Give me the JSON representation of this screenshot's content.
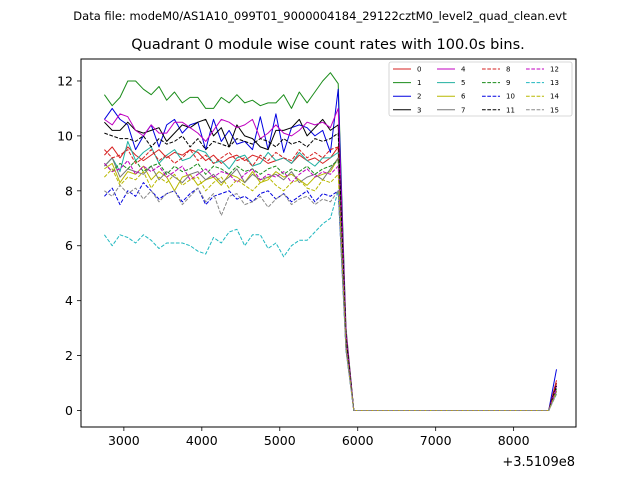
{
  "figure": {
    "suptitle": "Data file: modeM0/AS1A10_099T01_9000004184_29122cztM0_level2_quad_clean.evt",
    "title": "Quadrant 0 module wise count rates with 100.0s bins.",
    "x_offset_label": "+3.5109e8"
  },
  "chart_data": {
    "type": "line",
    "title": "Quadrant 0 module wise count rates with 100.0s bins.",
    "xlabel": "",
    "ylabel": "",
    "x_offset": 351090000,
    "xlim": [
      2450,
      8800
    ],
    "ylim": [
      -0.6,
      12.8
    ],
    "xticks": [
      3000,
      4000,
      5000,
      6000,
      7000,
      8000
    ],
    "xtick_labels": [
      "3000",
      "4000",
      "5000",
      "6000",
      "7000",
      "8000"
    ],
    "yticks": [
      0,
      2,
      4,
      6,
      8,
      10,
      12
    ],
    "ytick_labels": [
      "0",
      "2",
      "4",
      "6",
      "8",
      "10",
      "12"
    ],
    "grid": false,
    "legend_position": "top-right",
    "legend_columns": 4,
    "segment_x": [
      2750,
      2850,
      2950,
      3050,
      3150,
      3250,
      3350,
      3450,
      3550,
      3650,
      3750,
      3850,
      3950,
      4050,
      4150,
      4250,
      4350,
      4450,
      4550,
      4650,
      4750,
      4850,
      4950,
      5050,
      5150,
      5250,
      5350,
      5450,
      5550,
      5650,
      5750,
      5850,
      5950
    ],
    "segment2_x": [
      5950,
      8450,
      8550
    ],
    "series": [
      {
        "name": "0",
        "color": "#d62020",
        "dash": "solid",
        "values": [
          9.3,
          9.6,
          9.2,
          9.6,
          9.3,
          9.1,
          9.3,
          9.5,
          9.2,
          9.4,
          9.3,
          9.5,
          9.4,
          9.1,
          9.3,
          9.0,
          9.2,
          9.3,
          9.1,
          9.3,
          9.2,
          9.0,
          9.1,
          9.2,
          9.0,
          9.3,
          9.1,
          9.2,
          9.0,
          9.2,
          9.6,
          2.6,
          0.0
        ],
        "tail": [
          0.0,
          0.0,
          1.1
        ]
      },
      {
        "name": "1",
        "color": "#1a8c1a",
        "dash": "solid",
        "values": [
          11.5,
          11.1,
          11.4,
          12.0,
          12.0,
          11.7,
          11.5,
          11.8,
          11.3,
          11.6,
          11.2,
          11.4,
          11.4,
          11.0,
          11.0,
          11.4,
          11.2,
          11.5,
          11.2,
          11.3,
          11.1,
          11.2,
          11.2,
          11.5,
          11.0,
          11.6,
          11.2,
          11.6,
          12.0,
          12.3,
          11.9,
          3.0,
          0.0
        ],
        "tail": [
          0.0,
          0.0,
          0.7
        ]
      },
      {
        "name": "2",
        "color": "#0000e0",
        "dash": "solid",
        "values": [
          10.6,
          11.0,
          10.6,
          10.4,
          9.5,
          10.0,
          10.4,
          9.6,
          10.4,
          10.6,
          10.1,
          10.4,
          10.5,
          9.5,
          10.6,
          9.8,
          10.2,
          9.7,
          9.8,
          9.5,
          10.7,
          9.5,
          10.8,
          9.4,
          10.3,
          10.4,
          10.3,
          10.0,
          10.2,
          9.4,
          11.7,
          2.7,
          0.0
        ],
        "tail": [
          0.0,
          0.0,
          1.5
        ]
      },
      {
        "name": "3",
        "color": "#000000",
        "dash": "solid",
        "values": [
          10.5,
          10.2,
          10.2,
          10.5,
          10.2,
          10.1,
          10.2,
          10.3,
          9.8,
          10.1,
          10.4,
          10.3,
          10.5,
          10.6,
          10.0,
          10.3,
          9.6,
          10.4,
          10.0,
          9.9,
          9.6,
          9.5,
          10.2,
          10.2,
          10.3,
          10.6,
          10.0,
          10.3,
          10.6,
          10.2,
          10.4,
          2.8,
          0.0
        ],
        "tail": [
          0.0,
          0.0,
          1.0
        ]
      },
      {
        "name": "4",
        "color": "#c000c0",
        "dash": "solid",
        "values": [
          10.6,
          10.4,
          10.8,
          10.7,
          10.2,
          10.0,
          10.4,
          10.1,
          10.1,
          10.5,
          10.5,
          10.3,
          10.1,
          9.8,
          10.2,
          10.6,
          10.5,
          10.3,
          10.4,
          10.6,
          9.9,
          10.1,
          10.4,
          10.1,
          10.0,
          10.2,
          10.5,
          10.4,
          10.5,
          10.3,
          11.0,
          2.9,
          0.0
        ],
        "tail": [
          0.0,
          0.0,
          0.9
        ]
      },
      {
        "name": "5",
        "color": "#20b0a0",
        "dash": "solid",
        "values": [
          8.9,
          9.2,
          8.7,
          9.8,
          9.1,
          9.4,
          9.6,
          9.0,
          9.3,
          9.5,
          9.1,
          9.2,
          9.5,
          9.4,
          9.0,
          9.1,
          8.8,
          9.2,
          9.3,
          8.9,
          9.0,
          9.4,
          9.1,
          9.2,
          9.0,
          9.4,
          9.1,
          8.9,
          9.2,
          9.2,
          9.4,
          2.5,
          0.0
        ],
        "tail": [
          0.0,
          0.0,
          0.8
        ]
      },
      {
        "name": "6",
        "color": "#b8b800",
        "dash": "solid",
        "values": [
          8.8,
          9.0,
          8.3,
          8.7,
          8.6,
          8.9,
          8.4,
          8.7,
          8.5,
          8.0,
          8.5,
          8.6,
          8.2,
          8.4,
          8.5,
          8.2,
          8.6,
          8.5,
          8.3,
          8.7,
          8.3,
          8.4,
          8.7,
          8.5,
          8.6,
          8.4,
          8.2,
          8.5,
          8.6,
          8.7,
          9.2,
          2.4,
          0.0
        ],
        "tail": [
          0.0,
          0.0,
          0.8
        ]
      },
      {
        "name": "7",
        "color": "#777777",
        "dash": "solid",
        "values": [
          8.9,
          9.2,
          8.5,
          8.8,
          8.7,
          8.6,
          8.9,
          8.4,
          8.7,
          8.5,
          8.3,
          8.6,
          8.7,
          8.4,
          8.6,
          8.3,
          8.5,
          8.8,
          8.3,
          8.6,
          8.4,
          8.5,
          8.6,
          8.4,
          8.7,
          8.3,
          8.5,
          8.6,
          8.4,
          8.8,
          9.2,
          2.5,
          0.0
        ],
        "tail": [
          0.0,
          0.0,
          0.7
        ]
      },
      {
        "name": "8",
        "color": "#d62020",
        "dash": "dashed",
        "values": [
          9.5,
          9.2,
          9.3,
          9.5,
          9.0,
          9.2,
          9.5,
          9.1,
          9.3,
          9.0,
          9.2,
          9.5,
          9.1,
          9.3,
          9.0,
          9.2,
          9.4,
          9.1,
          9.2,
          8.9,
          9.3,
          9.1,
          9.4,
          9.2,
          9.1,
          9.5,
          9.2,
          9.4,
          9.2,
          9.5,
          9.6,
          2.6,
          0.0
        ],
        "tail": [
          0.0,
          0.0,
          1.0
        ]
      },
      {
        "name": "9",
        "color": "#1a8c1a",
        "dash": "dashed",
        "values": [
          9.0,
          8.7,
          9.0,
          8.8,
          9.1,
          8.7,
          8.9,
          9.0,
          8.6,
          8.9,
          8.7,
          8.8,
          9.0,
          8.6,
          8.9,
          8.8,
          8.6,
          8.9,
          8.7,
          8.8,
          8.6,
          8.8,
          8.9,
          8.6,
          8.8,
          8.7,
          8.9,
          8.6,
          8.8,
          8.9,
          9.1,
          2.5,
          0.0
        ],
        "tail": [
          0.0,
          0.0,
          0.8
        ]
      },
      {
        "name": "10",
        "color": "#0000e0",
        "dash": "dashed",
        "values": [
          7.8,
          8.1,
          7.5,
          8.0,
          7.8,
          8.3,
          8.0,
          7.7,
          7.9,
          8.0,
          7.6,
          7.9,
          8.1,
          7.5,
          7.8,
          7.9,
          8.0,
          7.7,
          7.8,
          7.6,
          7.9,
          8.0,
          7.7,
          7.9,
          7.6,
          7.8,
          8.0,
          7.6,
          7.9,
          7.8,
          8.0,
          2.2,
          0.0
        ],
        "tail": [
          0.0,
          0.0,
          0.7
        ]
      },
      {
        "name": "11",
        "color": "#000000",
        "dash": "dashed",
        "values": [
          10.1,
          10.0,
          9.9,
          9.9,
          9.8,
          10.0,
          9.6,
          9.9,
          9.7,
          9.8,
          10.0,
          9.6,
          9.9,
          9.5,
          9.8,
          9.7,
          9.6,
          9.9,
          9.8,
          9.7,
          9.9,
          9.8,
          9.6,
          9.9,
          9.7,
          9.8,
          9.6,
          9.9,
          9.8,
          9.9,
          10.1,
          2.7,
          0.0
        ],
        "tail": [
          0.0,
          0.0,
          0.9
        ]
      },
      {
        "name": "12",
        "color": "#c000c0",
        "dash": "dashed",
        "values": [
          9.0,
          8.7,
          8.8,
          9.1,
          8.6,
          8.9,
          8.7,
          8.9,
          8.5,
          8.7,
          8.9,
          8.4,
          8.6,
          8.8,
          8.5,
          8.7,
          8.6,
          8.3,
          8.6,
          8.8,
          8.4,
          8.6,
          8.5,
          8.7,
          8.3,
          8.6,
          8.8,
          8.5,
          8.7,
          8.6,
          8.9,
          2.4,
          0.0
        ],
        "tail": [
          0.0,
          0.0,
          0.8
        ]
      },
      {
        "name": "13",
        "color": "#20b8c0",
        "dash": "dashed",
        "values": [
          6.4,
          6.0,
          6.4,
          6.3,
          6.1,
          6.4,
          6.2,
          5.9,
          6.1,
          6.1,
          6.1,
          6.0,
          5.8,
          5.7,
          6.3,
          6.1,
          6.5,
          6.6,
          6.0,
          6.4,
          6.4,
          5.9,
          6.1,
          5.6,
          6.0,
          6.2,
          6.2,
          6.5,
          6.8,
          7.0,
          8.0,
          2.2,
          0.0
        ],
        "tail": [
          0.0,
          0.0,
          0.6
        ]
      },
      {
        "name": "14",
        "color": "#b8b800",
        "dash": "dashed",
        "values": [
          8.5,
          8.8,
          8.2,
          8.5,
          8.4,
          8.7,
          8.1,
          8.5,
          8.3,
          8.6,
          8.2,
          8.4,
          8.5,
          8.0,
          8.3,
          8.5,
          8.1,
          8.4,
          8.2,
          8.0,
          8.3,
          8.5,
          8.2,
          8.0,
          8.3,
          8.4,
          8.1,
          8.0,
          8.4,
          8.3,
          8.6,
          2.3,
          0.0
        ],
        "tail": [
          0.0,
          0.0,
          0.7
        ]
      },
      {
        "name": "15",
        "color": "#888888",
        "dash": "dashed",
        "values": [
          8.0,
          7.8,
          8.2,
          7.9,
          8.1,
          7.7,
          8.0,
          7.6,
          7.9,
          8.0,
          7.5,
          7.8,
          8.1,
          7.6,
          7.9,
          7.1,
          7.8,
          7.9,
          7.5,
          7.6,
          7.8,
          7.4,
          7.7,
          7.9,
          7.5,
          7.7,
          7.8,
          7.5,
          7.7,
          7.6,
          8.0,
          2.2,
          0.0
        ],
        "tail": [
          0.0,
          0.0,
          0.6
        ]
      }
    ]
  }
}
